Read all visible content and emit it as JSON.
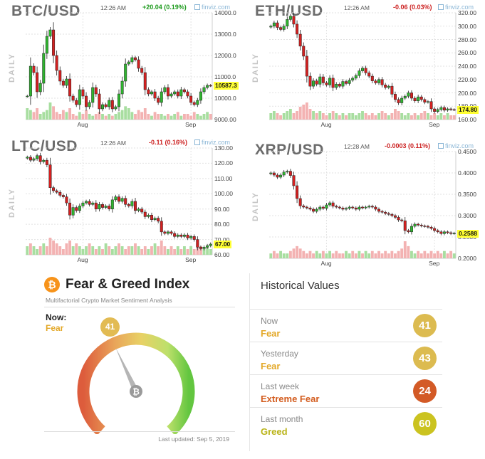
{
  "panels": [
    {
      "id": "btc",
      "ticker": "BTC/USD",
      "time": "12:26 AM",
      "change": "+20.04 (0.19%)",
      "direction": "up",
      "brand": "finviz.com",
      "axis_label": "DAILY",
      "last_price": "10587.3",
      "yticks": [
        "14000.0",
        "13000.0",
        "12000.0",
        "11000.0",
        "10000.0",
        "9000.00"
      ],
      "xticks": [
        "Aug",
        "Sep"
      ]
    },
    {
      "id": "eth",
      "ticker": "ETH/USD",
      "time": "12:26 AM",
      "change": "-0.06 (0.03%)",
      "direction": "down",
      "brand": "finviz.com",
      "axis_label": "DAILY",
      "last_price": "174.80",
      "yticks": [
        "320.00",
        "300.00",
        "280.00",
        "260.00",
        "240.00",
        "220.00",
        "200.00",
        "180.00",
        "160.00"
      ],
      "xticks": [
        "Aug",
        "Sep"
      ]
    },
    {
      "id": "ltc",
      "ticker": "LTC/USD",
      "time": "12:26 AM",
      "change": "-0.11 (0.16%)",
      "direction": "down",
      "brand": "finviz.com",
      "axis_label": "DAILY",
      "last_price": "67.00",
      "yticks": [
        "130.00",
        "120.00",
        "110.00",
        "100.00",
        "90.00",
        "80.00",
        "70.00",
        "60.00"
      ],
      "xticks": [
        "Aug",
        "Sep"
      ]
    },
    {
      "id": "xrp",
      "ticker": "XRP/USD",
      "time": "12:28 AM",
      "change": "-0.0003 (0.11%)",
      "direction": "down",
      "brand": "finviz.com",
      "axis_label": "DAILY",
      "last_price": "0.2588",
      "yticks": [
        "0.4500",
        "0.4000",
        "0.3500",
        "0.3000",
        "0.2500",
        "0.2000"
      ],
      "xticks": [
        "Aug",
        "Sep"
      ]
    }
  ],
  "chart_data": [
    {
      "type": "candlestick",
      "title": "BTC/USD",
      "ylim": [
        9000,
        14000
      ],
      "x_ticks": [
        "Aug",
        "Sep"
      ],
      "last": 10587.3,
      "close": [
        10100,
        11500,
        11200,
        10300,
        10700,
        12100,
        12900,
        13200,
        12000,
        11300,
        10800,
        10600,
        10900,
        10100,
        9900,
        9700,
        10400,
        10100,
        9600,
        9800,
        10500,
        10200,
        9500,
        9700,
        9600,
        9900,
        9500,
        9600,
        10200,
        10800,
        11600,
        11700,
        11900,
        11800,
        11400,
        11200,
        10400,
        10200,
        10300,
        10000,
        9800,
        10300,
        10500,
        10100,
        10200,
        10300,
        10100,
        10400,
        10300,
        10100,
        9800,
        9700,
        9900,
        10300,
        10500,
        10600,
        10587.3
      ],
      "volume": [
        6,
        5,
        4,
        6,
        3,
        4,
        5,
        9,
        7,
        4,
        3,
        5,
        4,
        6,
        3,
        2,
        4,
        3,
        5,
        3,
        2,
        3,
        4,
        3,
        2,
        3,
        2,
        3,
        4,
        5,
        7,
        6,
        4,
        3,
        5,
        4,
        6,
        3,
        2,
        4,
        3,
        3,
        2,
        3,
        2,
        3,
        4,
        2,
        3,
        3,
        2,
        4,
        3,
        2,
        3,
        4,
        3
      ]
    },
    {
      "type": "candlestick",
      "title": "ETH/USD",
      "ylim": [
        160,
        320
      ],
      "x_ticks": [
        "Aug",
        "Sep"
      ],
      "last": 174.8,
      "close": [
        300,
        305,
        298,
        295,
        300,
        310,
        315,
        303,
        288,
        270,
        255,
        225,
        210,
        218,
        213,
        224,
        215,
        212,
        222,
        208,
        213,
        210,
        217,
        214,
        219,
        222,
        226,
        233,
        237,
        230,
        225,
        218,
        215,
        220,
        212,
        208,
        210,
        198,
        190,
        185,
        192,
        195,
        200,
        192,
        188,
        194,
        190,
        186,
        187,
        176,
        172,
        175,
        178,
        174,
        176,
        175,
        174.8
      ],
      "volume": [
        3,
        4,
        3,
        2,
        3,
        4,
        5,
        3,
        4,
        6,
        7,
        8,
        5,
        4,
        3,
        4,
        3,
        2,
        3,
        4,
        3,
        2,
        3,
        2,
        3,
        3,
        2,
        3,
        4,
        3,
        2,
        3,
        2,
        3,
        4,
        3,
        2,
        3,
        5,
        4,
        3,
        2,
        3,
        2,
        3,
        2,
        3,
        4,
        3,
        2,
        3,
        2,
        3,
        2,
        3,
        2,
        2
      ]
    },
    {
      "type": "candlestick",
      "title": "LTC/USD",
      "ylim": [
        60,
        130
      ],
      "x_ticks": [
        "Aug",
        "Sep"
      ],
      "last": 67.0,
      "close": [
        124,
        122,
        123,
        125,
        121,
        122,
        119,
        104,
        102,
        101,
        99,
        98,
        94,
        86,
        91,
        89,
        92,
        94,
        95,
        93,
        94,
        90,
        93,
        91,
        92,
        90,
        96,
        98,
        95,
        97,
        93,
        92,
        95,
        89,
        90,
        88,
        85,
        86,
        83,
        84,
        82,
        75,
        74,
        75,
        74,
        72,
        73,
        72,
        73,
        71,
        72,
        70,
        65,
        64,
        65,
        66,
        67
      ],
      "volume": [
        3,
        4,
        3,
        2,
        3,
        4,
        3,
        6,
        5,
        4,
        3,
        2,
        4,
        5,
        3,
        4,
        3,
        2,
        3,
        4,
        3,
        2,
        3,
        2,
        4,
        3,
        2,
        3,
        4,
        3,
        2,
        3,
        3,
        4,
        3,
        2,
        3,
        2,
        3,
        4,
        3,
        5,
        3,
        2,
        3,
        2,
        3,
        2,
        3,
        2,
        3,
        2,
        4,
        3,
        2,
        3,
        2
      ]
    },
    {
      "type": "candlestick",
      "title": "XRP/USD",
      "ylim": [
        0.2,
        0.45
      ],
      "x_ticks": [
        "Aug",
        "Sep"
      ],
      "last": 0.2588,
      "close": [
        0.4,
        0.395,
        0.39,
        0.395,
        0.402,
        0.404,
        0.394,
        0.37,
        0.34,
        0.323,
        0.32,
        0.318,
        0.315,
        0.31,
        0.315,
        0.32,
        0.317,
        0.325,
        0.33,
        0.322,
        0.32,
        0.318,
        0.315,
        0.317,
        0.32,
        0.318,
        0.315,
        0.32,
        0.318,
        0.32,
        0.322,
        0.32,
        0.315,
        0.31,
        0.308,
        0.305,
        0.303,
        0.3,
        0.296,
        0.29,
        0.288,
        0.265,
        0.262,
        0.275,
        0.28,
        0.278,
        0.276,
        0.275,
        0.273,
        0.27,
        0.265,
        0.262,
        0.258,
        0.262,
        0.26,
        0.258,
        0.2588
      ],
      "volume": [
        2,
        3,
        2,
        3,
        2,
        2,
        3,
        4,
        5,
        4,
        3,
        2,
        3,
        2,
        3,
        2,
        3,
        2,
        3,
        2,
        3,
        2,
        2,
        3,
        2,
        3,
        2,
        3,
        2,
        3,
        2,
        3,
        2,
        3,
        2,
        3,
        2,
        3,
        2,
        3,
        4,
        7,
        5,
        3,
        2,
        3,
        2,
        3,
        2,
        3,
        2,
        3,
        2,
        3,
        2,
        3,
        2
      ]
    }
  ],
  "fear_greed": {
    "title": "Fear & Greed Index",
    "subtitle": "Multifactorial Crypto Market Sentiment Analysis",
    "logo_glyph": "₿",
    "now_label": "Now:",
    "now_value": "Fear",
    "score": "41",
    "score_value": 41,
    "gauge_glyph": "₿",
    "updated": "Last updated: Sep 5, 2019",
    "colors": {
      "fear": "#e3a828",
      "bubble": "#e2bb53"
    }
  },
  "historical": {
    "title": "Historical Values",
    "rows": [
      {
        "label": "Now",
        "value": "Fear",
        "score": "41",
        "color": "#e3a828",
        "circle": "#dcbb50"
      },
      {
        "label": "Yesterday",
        "value": "Fear",
        "score": "43",
        "color": "#e3a828",
        "circle": "#dcbb50"
      },
      {
        "label": "Last week",
        "value": "Extreme Fear",
        "score": "24",
        "color": "#d35c1e",
        "circle": "#d35a26"
      },
      {
        "label": "Last month",
        "value": "Greed",
        "score": "60",
        "color": "#b9b317",
        "circle": "#cbc320"
      }
    ]
  }
}
